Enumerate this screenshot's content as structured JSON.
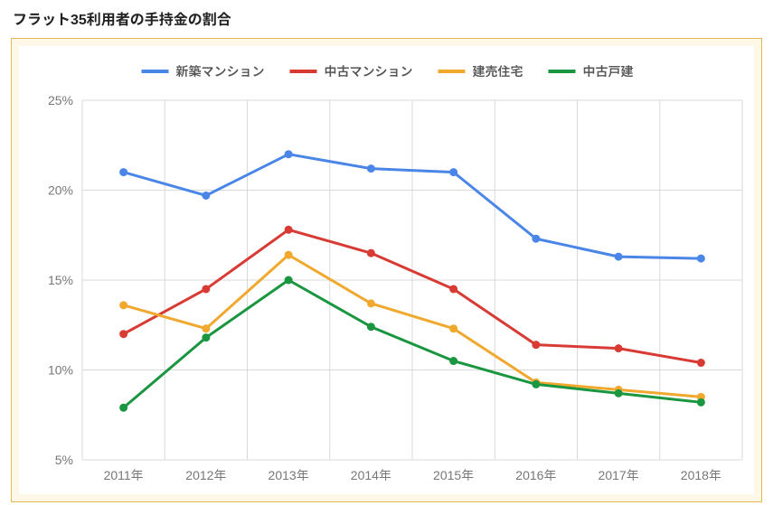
{
  "title": "フラット35利用者の手持金の割合",
  "chart": {
    "type": "line",
    "background_outer": "#fdf8e8",
    "border_outer": "#e3bb55",
    "background_inner": "#ffffff",
    "grid_color": "#d9d9d9",
    "axis_text_color": "#777777",
    "axis_fontsize": 14,
    "legend_fontsize": 14,
    "line_width": 3,
    "marker_radius": 4.5,
    "x_labels": [
      "2011年",
      "2012年",
      "2013年",
      "2014年",
      "2015年",
      "2016年",
      "2017年",
      "2018年"
    ],
    "y_ticks": [
      5,
      10,
      15,
      20,
      25
    ],
    "y_tick_labels": [
      "5%",
      "10%",
      "15%",
      "20%",
      "25%"
    ],
    "ylim": [
      5,
      25
    ],
    "series": [
      {
        "name": "新築マンション",
        "color": "#4a86e8",
        "values": [
          21.0,
          19.7,
          22.0,
          21.2,
          21.0,
          17.3,
          16.3,
          16.2
        ]
      },
      {
        "name": "中古マンション",
        "color": "#d83a34",
        "values": [
          12.0,
          14.5,
          17.8,
          16.5,
          14.5,
          11.4,
          11.2,
          10.4
        ]
      },
      {
        "name": "建売住宅",
        "color": "#f0a82e",
        "values": [
          13.6,
          12.3,
          16.4,
          13.7,
          12.3,
          9.3,
          8.9,
          8.5
        ]
      },
      {
        "name": "中古戸建",
        "color": "#1a9641",
        "values": [
          7.9,
          11.8,
          15.0,
          12.4,
          10.5,
          9.2,
          8.7,
          8.2
        ]
      }
    ]
  }
}
